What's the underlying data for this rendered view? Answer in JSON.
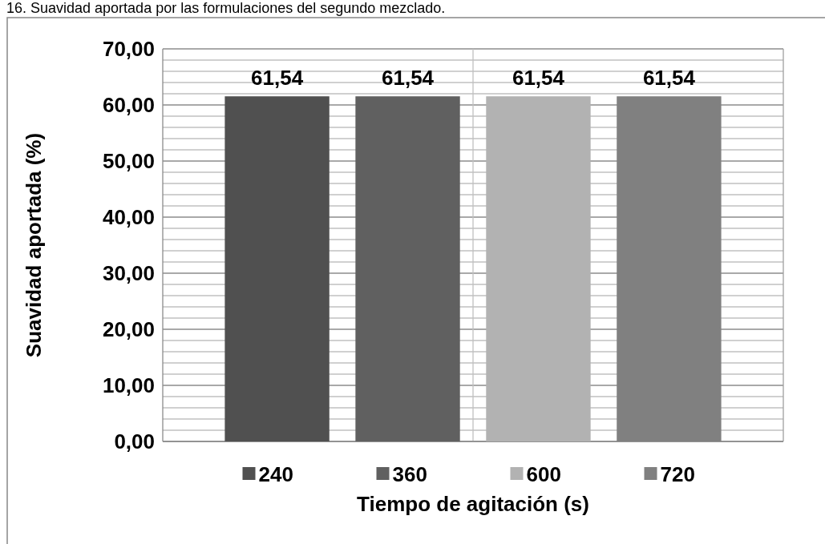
{
  "chart_data": {
    "type": "bar",
    "title": "16. Suavidad aportada por las formulaciones del segundo mezclado.",
    "categories": [
      null
    ],
    "series": [
      {
        "name": "240",
        "color": "#505050",
        "values": [
          61.54
        ],
        "value_labels": [
          "61,54"
        ]
      },
      {
        "name": "360",
        "color": "#606060",
        "values": [
          61.54
        ],
        "value_labels": [
          "61,54"
        ]
      },
      {
        "name": "600",
        "color": "#b2b2b2",
        "values": [
          61.54
        ],
        "value_labels": [
          "61,54"
        ]
      },
      {
        "name": "720",
        "color": "#808080",
        "values": [
          61.54
        ],
        "value_labels": [
          "61,54"
        ]
      }
    ],
    "xlabel": "Tiempo de agitación (s)",
    "ylabel": "Suavidad aportada (%)",
    "ylim": [
      0,
      70
    ],
    "yticks": [
      {
        "value": 0,
        "label": "0,00"
      },
      {
        "value": 2,
        "label": null
      },
      {
        "value": 4,
        "label": null
      },
      {
        "value": 6,
        "label": null
      },
      {
        "value": 8,
        "label": null
      },
      {
        "value": 10,
        "label": "10,00"
      },
      {
        "value": 12,
        "label": null
      },
      {
        "value": 14,
        "label": null
      },
      {
        "value": 16,
        "label": null
      },
      {
        "value": 18,
        "label": null
      },
      {
        "value": 20,
        "label": "20,00"
      },
      {
        "value": 22,
        "label": null
      },
      {
        "value": 24,
        "label": null
      },
      {
        "value": 26,
        "label": null
      },
      {
        "value": 28,
        "label": null
      },
      {
        "value": 30,
        "label": "30,00"
      },
      {
        "value": 32,
        "label": null
      },
      {
        "value": 34,
        "label": null
      },
      {
        "value": 36,
        "label": null
      },
      {
        "value": 38,
        "label": null
      },
      {
        "value": 40,
        "label": "40,00"
      },
      {
        "value": 42,
        "label": null
      },
      {
        "value": 44,
        "label": null
      },
      {
        "value": 46,
        "label": null
      },
      {
        "value": 48,
        "label": null
      },
      {
        "value": 50,
        "label": "50,00"
      },
      {
        "value": 52,
        "label": null
      },
      {
        "value": 54,
        "label": null
      },
      {
        "value": 56,
        "label": null
      },
      {
        "value": 58,
        "label": null
      },
      {
        "value": 60,
        "label": "60,00"
      },
      {
        "value": 62,
        "label": null
      },
      {
        "value": 64,
        "label": null
      },
      {
        "value": 66,
        "label": null
      },
      {
        "value": 68,
        "label": null
      },
      {
        "value": 70,
        "label": "70,00"
      }
    ],
    "grid": true,
    "legend": "bottom"
  }
}
